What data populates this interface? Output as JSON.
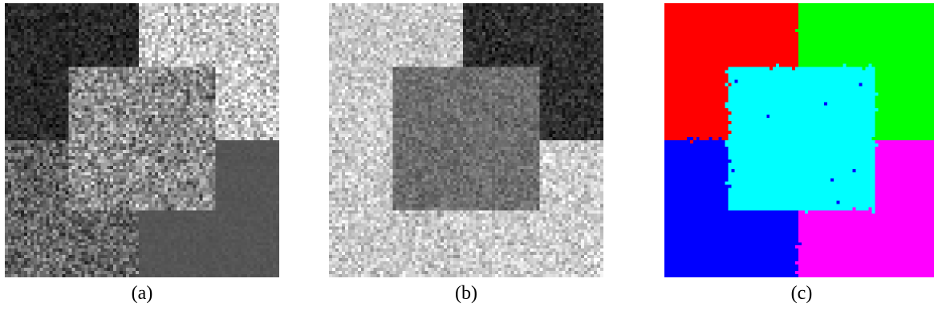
{
  "figure": {
    "panels": [
      {
        "caption": "(a)",
        "kind": "noisy-grayscale-texture"
      },
      {
        "caption": "(b)",
        "kind": "noisy-grayscale-texture"
      },
      {
        "caption": "(c)",
        "kind": "segmentation-label-map",
        "label_colors": [
          "#ff0000",
          "#00ff00",
          "#0000ff",
          "#ff00ff",
          "#00ffff"
        ]
      }
    ]
  }
}
